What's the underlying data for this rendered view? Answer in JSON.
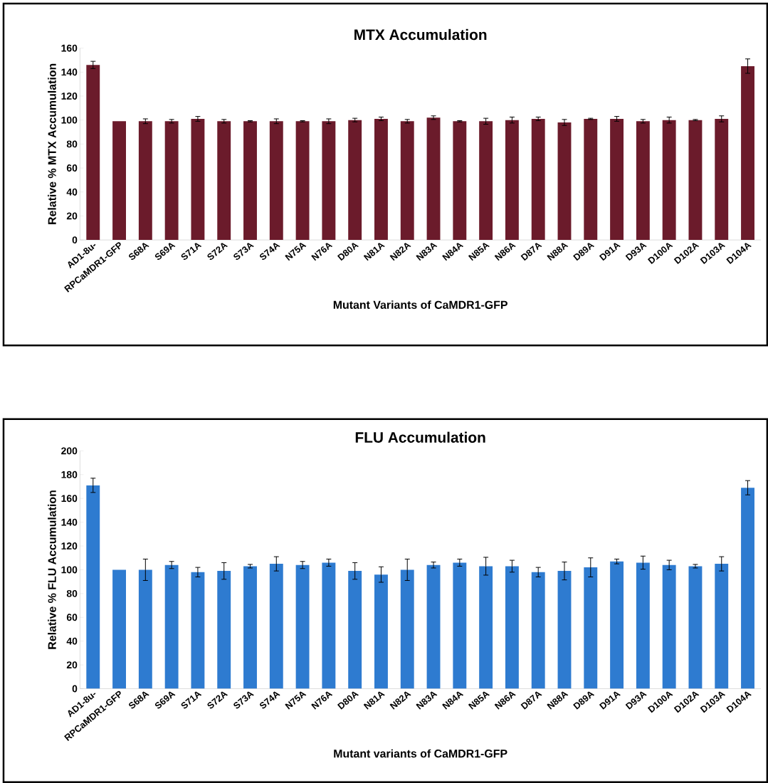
{
  "chart_data": [
    {
      "type": "bar",
      "title": "MTX Accumulation",
      "xlabel": "Mutant Variants of CaMDR1-GFP",
      "ylabel": "Relative % MTX Accumulation",
      "categories": [
        "AD1-8u-",
        "RPCaMDR1-GFP",
        "S68A",
        "S69A",
        "S71A",
        "S72A",
        "S73A",
        "S74A",
        "N75A",
        "N76A",
        "D80A",
        "N81A",
        "N82A",
        "N83A",
        "N84A",
        "N85A",
        "N86A",
        "D87A",
        "N88A",
        "D89A",
        "D91A",
        "D93A",
        "D100A",
        "D102A",
        "D103A",
        "D104A"
      ],
      "values": [
        146,
        99,
        99,
        99,
        101,
        99,
        99,
        99,
        99,
        99,
        100,
        101,
        99,
        102,
        99,
        99,
        100,
        101,
        98,
        101,
        101,
        99,
        100,
        100,
        101,
        145
      ],
      "errors": [
        3,
        null,
        2,
        1.5,
        2,
        1.5,
        0.5,
        2,
        0.5,
        2,
        1.5,
        1.5,
        1.5,
        1.5,
        0.5,
        2.5,
        2.5,
        1.5,
        2.5,
        0.5,
        2,
        1.5,
        2.5,
        0.5,
        2.5,
        6
      ],
      "color": "#6b1b2b",
      "ylim": [
        0,
        160
      ],
      "yticks": [
        0,
        20,
        40,
        60,
        80,
        100,
        120,
        140,
        160
      ]
    },
    {
      "type": "bar",
      "title": "FLU Accumulation",
      "xlabel": "Mutant variants of CaMDR1-GFP",
      "ylabel": "Relative % FLU Accumulation",
      "categories": [
        "AD1-8u-",
        "RPCaMDR1-GFP",
        "S68A",
        "S69A",
        "S71A",
        "S72A",
        "S73A",
        "S74A",
        "N75A",
        "N76A",
        "D80A",
        "N81A",
        "N82A",
        "N83A",
        "N84A",
        "N85A",
        "N86A",
        "D87A",
        "N88A",
        "D89A",
        "D91A",
        "D93A",
        "D100A",
        "D102A",
        "D103A",
        "D104A"
      ],
      "values": [
        171,
        100,
        100,
        104,
        98,
        99,
        103,
        105,
        104,
        106,
        99,
        96,
        100,
        104,
        106,
        103,
        103,
        98,
        99,
        102,
        107,
        106,
        104,
        103,
        105,
        169
      ],
      "errors": [
        6,
        null,
        9,
        3,
        4,
        7,
        1.5,
        6,
        3,
        3,
        7,
        6.5,
        9,
        2.5,
        3,
        7.5,
        5,
        4,
        7.5,
        8,
        2,
        5.5,
        4,
        1.5,
        6,
        6
      ],
      "color": "#2e7bd0",
      "ylim": [
        0,
        200
      ],
      "yticks": [
        0,
        20,
        40,
        60,
        80,
        100,
        120,
        140,
        160,
        180,
        200
      ]
    }
  ]
}
